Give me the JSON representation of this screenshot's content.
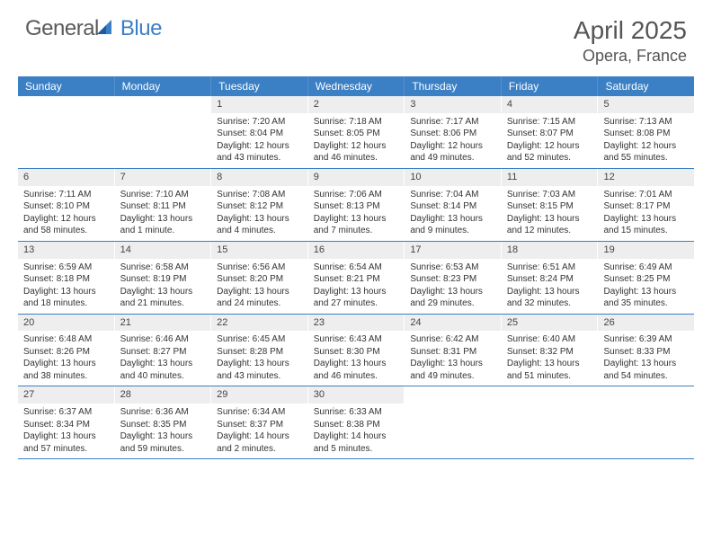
{
  "logo": {
    "general": "General",
    "blue": "Blue"
  },
  "title": "April 2025",
  "location": "Opera, France",
  "dayHeaders": [
    "Sunday",
    "Monday",
    "Tuesday",
    "Wednesday",
    "Thursday",
    "Friday",
    "Saturday"
  ],
  "colors": {
    "header_bg": "#3b7fc4",
    "header_text": "#ffffff",
    "daynum_bg": "#eeeeee",
    "text": "#333333",
    "title_text": "#555555",
    "week_border": "#3b7fc4"
  },
  "typography": {
    "title_fontsize": 28,
    "location_fontsize": 18,
    "dayhead_fontsize": 12,
    "cell_fontsize": 10,
    "logo_fontsize": 24
  },
  "weeks": [
    [
      {
        "n": "",
        "sr": "",
        "ss": "",
        "dl": ""
      },
      {
        "n": "",
        "sr": "",
        "ss": "",
        "dl": ""
      },
      {
        "n": "1",
        "sr": "Sunrise: 7:20 AM",
        "ss": "Sunset: 8:04 PM",
        "dl": "Daylight: 12 hours and 43 minutes."
      },
      {
        "n": "2",
        "sr": "Sunrise: 7:18 AM",
        "ss": "Sunset: 8:05 PM",
        "dl": "Daylight: 12 hours and 46 minutes."
      },
      {
        "n": "3",
        "sr": "Sunrise: 7:17 AM",
        "ss": "Sunset: 8:06 PM",
        "dl": "Daylight: 12 hours and 49 minutes."
      },
      {
        "n": "4",
        "sr": "Sunrise: 7:15 AM",
        "ss": "Sunset: 8:07 PM",
        "dl": "Daylight: 12 hours and 52 minutes."
      },
      {
        "n": "5",
        "sr": "Sunrise: 7:13 AM",
        "ss": "Sunset: 8:08 PM",
        "dl": "Daylight: 12 hours and 55 minutes."
      }
    ],
    [
      {
        "n": "6",
        "sr": "Sunrise: 7:11 AM",
        "ss": "Sunset: 8:10 PM",
        "dl": "Daylight: 12 hours and 58 minutes."
      },
      {
        "n": "7",
        "sr": "Sunrise: 7:10 AM",
        "ss": "Sunset: 8:11 PM",
        "dl": "Daylight: 13 hours and 1 minute."
      },
      {
        "n": "8",
        "sr": "Sunrise: 7:08 AM",
        "ss": "Sunset: 8:12 PM",
        "dl": "Daylight: 13 hours and 4 minutes."
      },
      {
        "n": "9",
        "sr": "Sunrise: 7:06 AM",
        "ss": "Sunset: 8:13 PM",
        "dl": "Daylight: 13 hours and 7 minutes."
      },
      {
        "n": "10",
        "sr": "Sunrise: 7:04 AM",
        "ss": "Sunset: 8:14 PM",
        "dl": "Daylight: 13 hours and 9 minutes."
      },
      {
        "n": "11",
        "sr": "Sunrise: 7:03 AM",
        "ss": "Sunset: 8:15 PM",
        "dl": "Daylight: 13 hours and 12 minutes."
      },
      {
        "n": "12",
        "sr": "Sunrise: 7:01 AM",
        "ss": "Sunset: 8:17 PM",
        "dl": "Daylight: 13 hours and 15 minutes."
      }
    ],
    [
      {
        "n": "13",
        "sr": "Sunrise: 6:59 AM",
        "ss": "Sunset: 8:18 PM",
        "dl": "Daylight: 13 hours and 18 minutes."
      },
      {
        "n": "14",
        "sr": "Sunrise: 6:58 AM",
        "ss": "Sunset: 8:19 PM",
        "dl": "Daylight: 13 hours and 21 minutes."
      },
      {
        "n": "15",
        "sr": "Sunrise: 6:56 AM",
        "ss": "Sunset: 8:20 PM",
        "dl": "Daylight: 13 hours and 24 minutes."
      },
      {
        "n": "16",
        "sr": "Sunrise: 6:54 AM",
        "ss": "Sunset: 8:21 PM",
        "dl": "Daylight: 13 hours and 27 minutes."
      },
      {
        "n": "17",
        "sr": "Sunrise: 6:53 AM",
        "ss": "Sunset: 8:23 PM",
        "dl": "Daylight: 13 hours and 29 minutes."
      },
      {
        "n": "18",
        "sr": "Sunrise: 6:51 AM",
        "ss": "Sunset: 8:24 PM",
        "dl": "Daylight: 13 hours and 32 minutes."
      },
      {
        "n": "19",
        "sr": "Sunrise: 6:49 AM",
        "ss": "Sunset: 8:25 PM",
        "dl": "Daylight: 13 hours and 35 minutes."
      }
    ],
    [
      {
        "n": "20",
        "sr": "Sunrise: 6:48 AM",
        "ss": "Sunset: 8:26 PM",
        "dl": "Daylight: 13 hours and 38 minutes."
      },
      {
        "n": "21",
        "sr": "Sunrise: 6:46 AM",
        "ss": "Sunset: 8:27 PM",
        "dl": "Daylight: 13 hours and 40 minutes."
      },
      {
        "n": "22",
        "sr": "Sunrise: 6:45 AM",
        "ss": "Sunset: 8:28 PM",
        "dl": "Daylight: 13 hours and 43 minutes."
      },
      {
        "n": "23",
        "sr": "Sunrise: 6:43 AM",
        "ss": "Sunset: 8:30 PM",
        "dl": "Daylight: 13 hours and 46 minutes."
      },
      {
        "n": "24",
        "sr": "Sunrise: 6:42 AM",
        "ss": "Sunset: 8:31 PM",
        "dl": "Daylight: 13 hours and 49 minutes."
      },
      {
        "n": "25",
        "sr": "Sunrise: 6:40 AM",
        "ss": "Sunset: 8:32 PM",
        "dl": "Daylight: 13 hours and 51 minutes."
      },
      {
        "n": "26",
        "sr": "Sunrise: 6:39 AM",
        "ss": "Sunset: 8:33 PM",
        "dl": "Daylight: 13 hours and 54 minutes."
      }
    ],
    [
      {
        "n": "27",
        "sr": "Sunrise: 6:37 AM",
        "ss": "Sunset: 8:34 PM",
        "dl": "Daylight: 13 hours and 57 minutes."
      },
      {
        "n": "28",
        "sr": "Sunrise: 6:36 AM",
        "ss": "Sunset: 8:35 PM",
        "dl": "Daylight: 13 hours and 59 minutes."
      },
      {
        "n": "29",
        "sr": "Sunrise: 6:34 AM",
        "ss": "Sunset: 8:37 PM",
        "dl": "Daylight: 14 hours and 2 minutes."
      },
      {
        "n": "30",
        "sr": "Sunrise: 6:33 AM",
        "ss": "Sunset: 8:38 PM",
        "dl": "Daylight: 14 hours and 5 minutes."
      },
      {
        "n": "",
        "sr": "",
        "ss": "",
        "dl": ""
      },
      {
        "n": "",
        "sr": "",
        "ss": "",
        "dl": ""
      },
      {
        "n": "",
        "sr": "",
        "ss": "",
        "dl": ""
      }
    ]
  ]
}
